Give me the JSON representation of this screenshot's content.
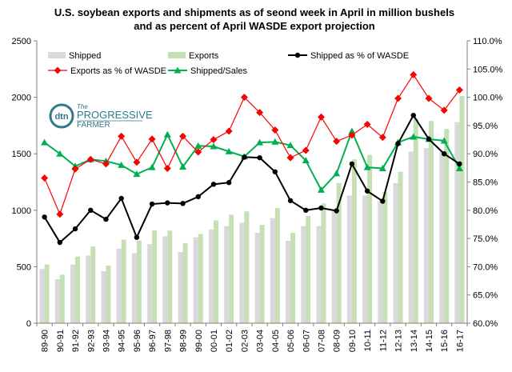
{
  "chart_data": {
    "type": "bar",
    "title_line1": "U.S. soybean exports and shipments as of seond week in April in million bushels",
    "title_line2": "and as percent of April WASDE  export projection",
    "categories": [
      "89-90",
      "90-91",
      "91-92",
      "92-93",
      "93-94",
      "94-95",
      "95-96",
      "96-97",
      "97-98",
      "98-99",
      "99-00",
      "00-01",
      "01-02",
      "02-03",
      "03-04",
      "04-05",
      "05-06",
      "06-07",
      "07-08",
      "08-09",
      "09-10",
      "10-11",
      "11-12",
      "12-13",
      "13-14",
      "14-15",
      "15-16",
      "16-17"
    ],
    "y_left": {
      "min": 0,
      "max": 2500,
      "ticks": [
        "0",
        "500",
        "1000",
        "1500",
        "2000",
        "2500"
      ]
    },
    "y_right": {
      "min": 60,
      "max": 110,
      "ticks": [
        "60.0%",
        "65.0%",
        "70.0%",
        "75.0%",
        "80.0%",
        "85.0%",
        "90.0%",
        "95.0%",
        "100.0%",
        "105.0%",
        "110.0%"
      ]
    },
    "series": [
      {
        "name": "Shipped",
        "kind": "bar",
        "axis": "left",
        "color": "#d9d9d9",
        "values": [
          480,
          390,
          520,
          600,
          460,
          660,
          620,
          700,
          770,
          630,
          760,
          830,
          860,
          890,
          800,
          930,
          730,
          860,
          860,
          1000,
          1130,
          1130,
          1080,
          1240,
          1520,
          1550,
          1520,
          1780
        ]
      },
      {
        "name": "Exports",
        "kind": "bar",
        "axis": "left",
        "color": "#c5e0b4",
        "values": [
          520,
          430,
          590,
          680,
          510,
          740,
          730,
          820,
          820,
          710,
          790,
          910,
          960,
          990,
          870,
          1020,
          800,
          950,
          1060,
          1240,
          1450,
          1490,
          1160,
          1340,
          1810,
          1790,
          1720,
          2010
        ]
      },
      {
        "name": "Shipped as % of WASDE",
        "kind": "line",
        "axis": "right",
        "color": "#000000",
        "marker": "circle",
        "values": [
          78.8,
          74.3,
          76.7,
          80.0,
          78.4,
          82.1,
          75.2,
          81.1,
          81.3,
          81.2,
          82.4,
          84.6,
          84.9,
          89.4,
          89.3,
          86.8,
          81.7,
          80.0,
          80.4,
          79.9,
          88.2,
          83.4,
          81.6,
          91.8,
          96.8,
          92.6,
          90.0,
          88.2
        ]
      },
      {
        "name": "Exports as % of WASDE",
        "kind": "line",
        "axis": "right",
        "color": "#ff0000",
        "marker": "diamond",
        "values": [
          85.7,
          79.3,
          87.3,
          89.0,
          88.2,
          93.1,
          88.5,
          92.6,
          87.4,
          93.1,
          90.3,
          92.5,
          94.0,
          100.0,
          97.3,
          94.2,
          89.3,
          90.6,
          96.5,
          92.2,
          93.3,
          95.2,
          92.9,
          99.8,
          104.0,
          99.8,
          97.7,
          101.3
        ]
      },
      {
        "name": "Shipped/Sales",
        "kind": "line",
        "axis": "right",
        "color": "#00b050",
        "marker": "triangle",
        "values": [
          92.0,
          90.0,
          87.8,
          89.0,
          88.7,
          88.0,
          86.4,
          87.6,
          93.4,
          87.7,
          91.4,
          91.3,
          90.4,
          89.5,
          92.0,
          92.1,
          91.5,
          88.8,
          83.6,
          86.5,
          94.0,
          87.6,
          87.4,
          92.0,
          93.0,
          92.6,
          92.3,
          87.4
        ]
      }
    ],
    "legend": [
      {
        "label": "Shipped",
        "type": "bar",
        "color": "#d9d9d9"
      },
      {
        "label": "Exports",
        "type": "bar",
        "color": "#c5e0b4"
      },
      {
        "label": "Shipped as % of WASDE",
        "type": "line",
        "color": "#000000",
        "marker": "circle"
      },
      {
        "label": "Exports as % of WASDE",
        "type": "line",
        "color": "#ff0000",
        "marker": "diamond"
      },
      {
        "label": "Shipped/Sales",
        "type": "line",
        "color": "#00b050",
        "marker": "triangle"
      }
    ],
    "legend_placement": "top-left",
    "grid": false
  },
  "logo": {
    "badge_text": "dtn",
    "line1": "The",
    "line2": "PROGRESSIVE",
    "line3": "FARMER",
    "color": "#2e7b8c"
  }
}
